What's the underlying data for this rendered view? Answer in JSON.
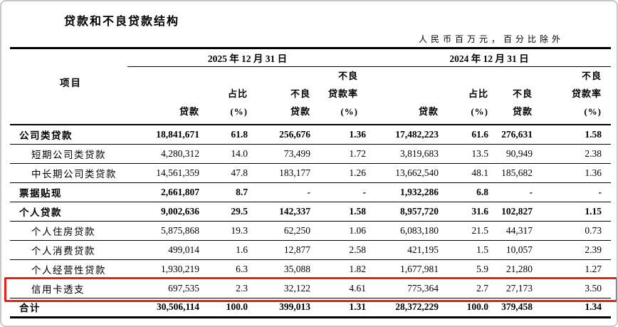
{
  "meta": {
    "title": "贷款和不良贷款结构",
    "unit_note": "人民币百万元，百分比除外"
  },
  "table": {
    "item_header": "项目",
    "period_headers": [
      "2025 年 12 月 31 日",
      "2024 年 12 月 31 日"
    ],
    "column_headers": [
      "贷款",
      "占比\n(%)",
      "不良\n贷款",
      "不良\n贷款率\n(%)",
      "贷款",
      "占比\n(%)",
      "不良\n贷款",
      "不良\n贷款率\n(%)"
    ],
    "highlight_color": "#e2231a",
    "rows": [
      {
        "item": "公司类贷款",
        "bold": true,
        "indent": false,
        "highlight": false,
        "values": [
          "18,841,671",
          "61.8",
          "256,676",
          "1.36",
          "17,482,223",
          "61.6",
          "276,631",
          "1.58"
        ]
      },
      {
        "item": "短期公司类贷款",
        "bold": false,
        "indent": true,
        "highlight": false,
        "values": [
          "4,280,312",
          "14.0",
          "73,499",
          "1.72",
          "3,819,683",
          "13.5",
          "90,949",
          "2.38"
        ]
      },
      {
        "item": "中长期公司类贷款",
        "bold": false,
        "indent": true,
        "highlight": false,
        "values": [
          "14,561,359",
          "47.8",
          "183,177",
          "1.26",
          "13,662,540",
          "48.1",
          "185,682",
          "1.36"
        ]
      },
      {
        "item": "票据贴现",
        "bold": true,
        "indent": false,
        "highlight": false,
        "values": [
          "2,661,807",
          "8.7",
          "-",
          "-",
          "1,932,286",
          "6.8",
          "-",
          "-"
        ]
      },
      {
        "item": "个人贷款",
        "bold": true,
        "indent": false,
        "highlight": false,
        "values": [
          "9,002,636",
          "29.5",
          "142,337",
          "1.58",
          "8,957,720",
          "31.6",
          "102,827",
          "1.15"
        ]
      },
      {
        "item": "个人住房贷款",
        "bold": false,
        "indent": true,
        "highlight": false,
        "values": [
          "5,875,868",
          "19.3",
          "62,250",
          "1.06",
          "6,083,180",
          "21.5",
          "44,317",
          "0.73"
        ]
      },
      {
        "item": "个人消费贷款",
        "bold": false,
        "indent": true,
        "highlight": false,
        "values": [
          "499,014",
          "1.6",
          "12,877",
          "2.58",
          "421,195",
          "1.5",
          "10,057",
          "2.39"
        ]
      },
      {
        "item": "个人经营性贷款",
        "bold": false,
        "indent": true,
        "highlight": false,
        "values": [
          "1,930,219",
          "6.3",
          "35,088",
          "1.82",
          "1,677,981",
          "5.9",
          "21,280",
          "1.27"
        ]
      },
      {
        "item": "信用卡透支",
        "bold": false,
        "indent": true,
        "highlight": true,
        "values": [
          "697,535",
          "2.3",
          "32,122",
          "4.61",
          "775,364",
          "2.7",
          "27,173",
          "3.50"
        ]
      },
      {
        "item": "合计",
        "bold": true,
        "indent": false,
        "highlight": false,
        "values": [
          "30,506,114",
          "100.0",
          "399,013",
          "1.31",
          "28,372,229",
          "100.0",
          "379,458",
          "1.34"
        ]
      }
    ]
  }
}
